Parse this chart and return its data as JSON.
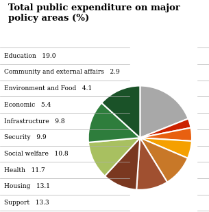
{
  "title_line1": "Total public expenditure on major",
  "title_line2": "policy areas (%)",
  "categories": [
    "Education",
    "Community and external affairs",
    "Environment and Food",
    "Economic",
    "Infrastructure",
    "Security",
    "Social welfare",
    "Health",
    "Housing",
    "Support"
  ],
  "values": [
    19.0,
    2.9,
    4.1,
    5.4,
    9.8,
    9.9,
    10.8,
    11.7,
    13.1,
    13.3
  ],
  "pie_colors": [
    "#a8a8a8",
    "#cc2200",
    "#e86010",
    "#f5a000",
    "#c87828",
    "#a05030",
    "#7a3820",
    "#a8c060",
    "#2e7d3c",
    "#1a5228"
  ],
  "label_font_size": 6.5,
  "title_font_size": 9.5
}
